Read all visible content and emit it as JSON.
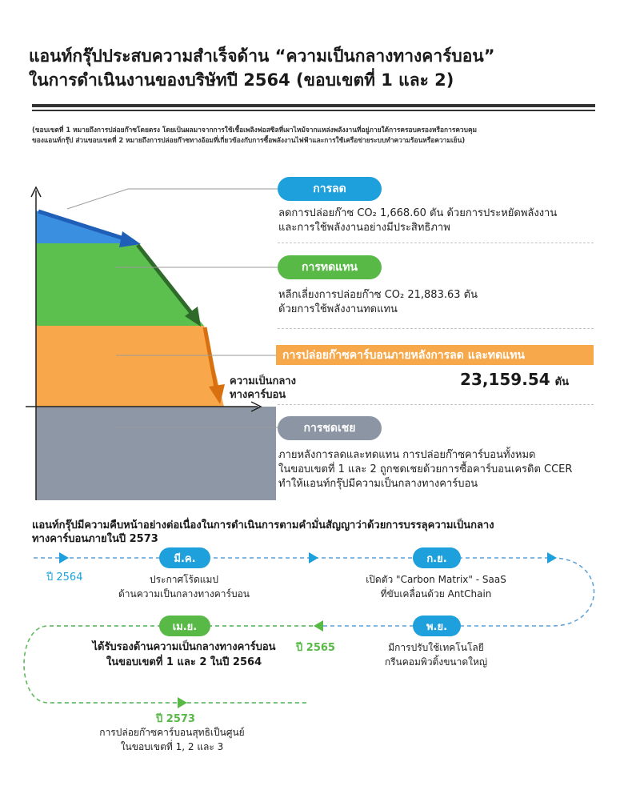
{
  "header": {
    "title_line1": "แอนท์กรุ๊ปประสบความสำเร็จด้าน “ความเป็นกลางทางคาร์บอน”",
    "title_line2": "ในการดำเนินงานของบริษัทปี 2564 (ขอบเขตที่ 1 และ 2)",
    "note_line1": "(ขอบเขตที่ 1 หมายถึงการปล่อยก๊าซโดยตรง โดยเป็นผลมาจากการใช้เชื้อเพลิงฟอสซิลที่เผาไหม้จากแหล่งพลังงานที่อยู่ภายใต้การครอบครองหรือการควบคุม",
    "note_line2": "ของแอนท์กรุ๊ป  ส่วนขอบเขตที่ 2 หมายถึงการปล่อยก๊าซทางอ้อมที่เกี่ยวข้องกับการซื้อพลังงานไฟฟ้าและการใช้เครือข่ายระบบทำความร้อนหรือความเย็น)"
  },
  "chart": {
    "reduction": {
      "label": "การลด",
      "desc_line1": "ลดการปล่อยก๊าซ CO₂ 1,668.60 ตัน ด้วยการประหยัดพลังงาน",
      "desc_line2": "และการใช้พลังงานอย่างมีประสิทธิภาพ"
    },
    "substitution": {
      "label": "การทดแทน",
      "desc_line1": "หลีกเลี่ยงการปล่อยก๊าซ CO₂ 21,883.63 ตัน",
      "desc_line2": "ด้วยการใช้พลังงานทดแทน"
    },
    "remaining": {
      "label": "การปล่อยก๊าซคาร์บอนภายหลังการลด และทดแทน",
      "value": "23,159.54",
      "unit": "ตัน"
    },
    "neutral_line1": "ความเป็นกลาง",
    "neutral_line2": "ทางคาร์บอน",
    "offset": {
      "label": "การชดเชย",
      "desc_line1": "ภายหลังการลดและทดแทน การปล่อยก๊าซคาร์บอนทั้งหมด",
      "desc_line2": "ในขอบเขตที่ 1 และ 2 ถูกชดเชยด้วยการซื้อคาร์บอนเครดิต CCER",
      "desc_line3": "ทำให้แอนท์กรุ๊ปมีความเป็นกลางทางคาร์บอน"
    },
    "colors": {
      "blue": "#3b8fe0",
      "green": "#5cc04e",
      "orange": "#f8a84b",
      "gray": "#8e97a5",
      "arrow_blue": "#1f5fb8",
      "arrow_green": "#2e6b2a",
      "arrow_orange": "#d9700f"
    }
  },
  "timeline": {
    "title_line1": "แอนท์กรุ๊ปมีความคืบหน้าอย่างต่อเนื่องในการดำเนินการตามคำมั่นสัญญาว่าด้วยการบรรลุความเป็นกลาง",
    "title_line2": "ทางคาร์บอนภายในปี 2573",
    "year_2564": "ปี 2564",
    "year_2565": "ปี 2565",
    "year_2573": "ปี 2573",
    "mar": {
      "label": "มี.ค.",
      "line1": "ประกาศโร้ดแมป",
      "line2": "ด้านความเป็นกลางทางคาร์บอน"
    },
    "sep": {
      "label": "ก.ย.",
      "line1": "เปิดตัว \"Carbon Matrix\" - SaaS",
      "line2": "ที่ขับเคลื่อนด้วย AntChain"
    },
    "nov": {
      "label": "พ.ย.",
      "line1": "มีการปรับใช้เทคโนโลยี",
      "line2": "กรีนคอมพิวติ้งขนาดใหญ่"
    },
    "apr": {
      "label": "เม.ย.",
      "line1": "ได้รับรองด้านความเป็นกลางทางคาร์บอน",
      "line2": "ในขอบเขตที่ 1 และ 2 ในปี 2564"
    },
    "goal": {
      "line1": "การปล่อยก๊าซคาร์บอนสุทธิเป็นศูนย์",
      "line2": "ในขอบเขตที่ 1, 2 และ 3"
    }
  }
}
